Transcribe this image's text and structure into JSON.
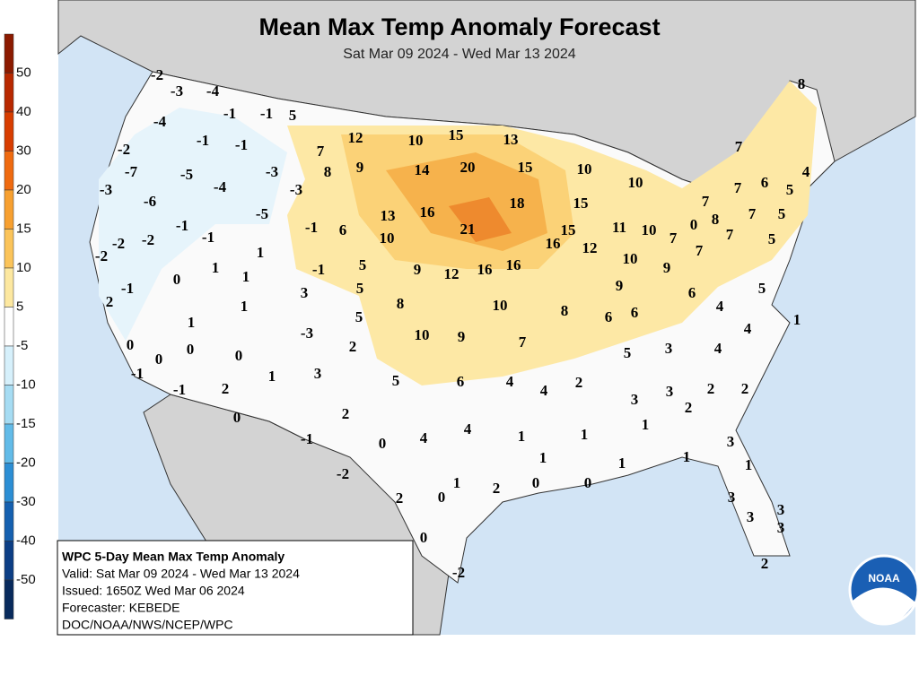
{
  "header": {
    "title": "Mean Max Temp Anomaly Forecast",
    "subtitle": "Sat Mar 09 2024 - Wed Mar 13 2024"
  },
  "legend": {
    "labels": [
      "50",
      "40",
      "30",
      "20",
      "15",
      "10",
      "5",
      "-5",
      "-10",
      "-15",
      "-20",
      "-30",
      "-40",
      "-50"
    ]
  },
  "info": {
    "lines": [
      "WPC 5-Day Mean Max Temp Anomaly",
      "Valid: Sat Mar 09 2024 - Wed Mar 13 2024",
      "Issued: 1650Z Wed Mar 06 2024",
      "Forecaster: KEBEDE",
      "DOC/NOAA/NWS/NCEP/WPC"
    ]
  },
  "logo": {
    "text": "NOAA"
  },
  "map": {
    "labels": [
      "-2",
      "-3",
      "-4",
      "-1",
      "-1",
      "5",
      "-4",
      "-1",
      "-1",
      "7",
      "12",
      "10",
      "15",
      "13",
      "-2",
      "-7",
      "-5",
      "-3",
      "8",
      "9",
      "14",
      "20",
      "15",
      "10",
      "10",
      "7",
      "8",
      "6",
      "4",
      "-3",
      "-4",
      "-3",
      "7",
      "5",
      "-6",
      "-5",
      "13",
      "16",
      "18",
      "15",
      "7",
      "-1",
      "-1",
      "-1",
      "6",
      "10",
      "21",
      "15",
      "16",
      "11",
      "10",
      "7",
      "0",
      "8",
      "7",
      "5",
      "7",
      "7",
      "5",
      "-2",
      "-2",
      "-2",
      "1",
      "12",
      "5",
      "9",
      "12",
      "16",
      "16",
      "10",
      "9",
      "1",
      "0",
      "1",
      "-1",
      "-1",
      "5",
      "3",
      "8",
      "10",
      "9",
      "6",
      "5",
      "2",
      "1",
      "8",
      "6",
      "6",
      "4",
      "5",
      "1",
      "-3",
      "10",
      "9",
      "7",
      "1",
      "4",
      "0",
      "2",
      "0",
      "0",
      "0",
      "5",
      "3",
      "4",
      "-1",
      "1",
      "3",
      "5",
      "6",
      "4",
      "4",
      "2",
      "3",
      "3",
      "2",
      "2",
      "-1",
      "2",
      "2",
      "0",
      "2",
      "1",
      "-1",
      "0",
      "4",
      "4",
      "1",
      "1",
      "3",
      "1",
      "1",
      "1",
      "1",
      "-2",
      "1",
      "2",
      "0",
      "0",
      "2",
      "0",
      "3",
      "3",
      "3",
      "3",
      "0",
      "-2",
      "2"
    ]
  }
}
